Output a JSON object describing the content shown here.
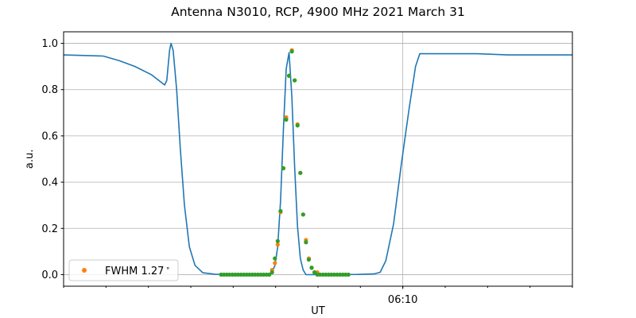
{
  "chart_data": {
    "type": "line",
    "title": "Antenna N3010, RCP, 4900 MHz 2021 March 31",
    "xlabel": "UT",
    "ylabel": "a.u.",
    "xlim": [
      "06:02:00",
      "06:14:00"
    ],
    "ylim": [
      -0.05,
      1.05
    ],
    "x_major_ticks": [
      {
        "time": "06:10:00",
        "label": "06:10"
      }
    ],
    "x_minor_tick_step_minutes": 1,
    "y_ticks": [
      0.0,
      0.2,
      0.4,
      0.6,
      0.8,
      1.0
    ],
    "y_tick_labels": [
      "0.0",
      "0.2",
      "0.4",
      "0.6",
      "0.8",
      "1.0"
    ],
    "grid": true,
    "legend": {
      "placement": "lower-left",
      "entries": [
        "FWHM 1.27$^\\circ$"
      ],
      "label_text": "FWHM 1.27",
      "label_sup": "∘"
    },
    "colors": {
      "line": "#1f77b4",
      "scatter_orange": "#ff7f0e",
      "scatter_green": "#2ca02c",
      "grid": "#b0b0b0"
    },
    "line": {
      "x": [
        "06:02:00",
        "06:02:56",
        "06:03:19",
        "06:03:41",
        "06:04:04",
        "06:04:23",
        "06:04:26",
        "06:04:30",
        "06:04:32",
        "06:04:35",
        "06:04:40",
        "06:04:45",
        "06:04:51",
        "06:04:58",
        "06:05:06",
        "06:05:17",
        "06:05:34",
        "06:06:08",
        "06:06:51",
        "06:06:55",
        "06:06:59",
        "06:07:03",
        "06:07:07",
        "06:07:11",
        "06:07:15",
        "06:07:19",
        "06:07:23",
        "06:07:27",
        "06:07:31",
        "06:07:35",
        "06:07:39",
        "06:07:43",
        "06:08:56",
        "06:09:19",
        "06:09:28",
        "06:09:36",
        "06:09:47",
        "06:09:58",
        "06:10:09",
        "06:10:18",
        "06:10:24",
        "06:11:45",
        "06:12:30",
        "06:14:00"
      ],
      "y": [
        0.95,
        0.945,
        0.925,
        0.9,
        0.865,
        0.82,
        0.84,
        0.97,
        1.0,
        0.97,
        0.8,
        0.55,
        0.3,
        0.12,
        0.04,
        0.008,
        0.002,
        0.0,
        0.0,
        0.01,
        0.04,
        0.12,
        0.32,
        0.62,
        0.89,
        0.96,
        0.77,
        0.46,
        0.21,
        0.07,
        0.02,
        0.0,
        0.001,
        0.003,
        0.01,
        0.06,
        0.22,
        0.48,
        0.72,
        0.9,
        0.955,
        0.955,
        0.95,
        0.95
      ]
    },
    "scatter_x": [
      "06:05:43",
      "06:05:47",
      "06:05:51",
      "06:05:55",
      "06:05:59",
      "06:06:03",
      "06:06:07",
      "06:06:11",
      "06:06:15",
      "06:06:19",
      "06:06:23",
      "06:06:27",
      "06:06:31",
      "06:06:35",
      "06:06:39",
      "06:06:43",
      "06:06:47",
      "06:06:51",
      "06:06:55",
      "06:06:59",
      "06:07:03",
      "06:07:07",
      "06:07:11",
      "06:07:15",
      "06:07:19",
      "06:07:23",
      "06:07:27",
      "06:07:31",
      "06:07:35",
      "06:07:39",
      "06:07:43",
      "06:07:47",
      "06:07:51",
      "06:07:55",
      "06:07:59",
      "06:08:03",
      "06:08:07",
      "06:08:11",
      "06:08:15",
      "06:08:19",
      "06:08:23",
      "06:08:27",
      "06:08:31",
      "06:08:35",
      "06:08:39",
      "06:08:43"
    ],
    "series": [
      {
        "name": "FWHM 1.27°",
        "color": "#ff7f0e",
        "values": [
          0,
          0,
          0,
          0,
          0,
          0,
          0,
          0,
          0,
          0,
          0,
          0,
          0,
          0,
          0,
          0,
          0,
          0,
          0.02,
          0.05,
          0.13,
          0.27,
          0.46,
          0.68,
          0.86,
          0.97,
          0.84,
          0.65,
          0.44,
          0.26,
          0.15,
          0.07,
          0.03,
          0.01,
          0.01,
          0,
          0,
          0,
          0,
          0,
          0,
          0,
          0,
          0,
          0,
          0
        ]
      },
      {
        "color": "#2ca02c",
        "values": [
          0,
          0,
          0,
          0,
          0,
          0,
          0,
          0,
          0,
          0,
          0,
          0,
          0,
          0,
          0,
          0,
          0,
          0,
          0.01,
          0.07,
          0.145,
          0.275,
          0.46,
          0.67,
          0.86,
          0.965,
          0.84,
          0.645,
          0.44,
          0.26,
          0.14,
          0.065,
          0.03,
          0.01,
          0,
          0,
          0,
          0,
          0,
          0,
          0,
          0,
          0,
          0,
          0,
          0
        ]
      }
    ]
  }
}
